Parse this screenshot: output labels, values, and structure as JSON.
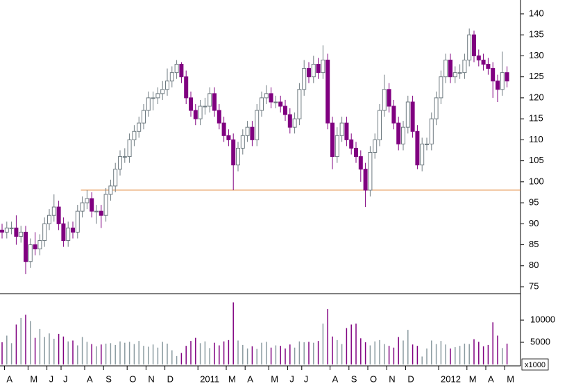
{
  "chart_data": {
    "type": "candlestick",
    "categories": [
      null,
      "A",
      null,
      null,
      null,
      null,
      "M",
      null,
      null,
      null,
      "J",
      null,
      null,
      "J",
      null,
      null,
      null,
      null,
      "A",
      null,
      null,
      null,
      "S",
      null,
      null,
      null,
      null,
      "O",
      null,
      null,
      null,
      "N",
      null,
      null,
      null,
      "D",
      null,
      null,
      null,
      null,
      null,
      null,
      "2011",
      null,
      null,
      null,
      null,
      null,
      "M",
      null,
      null,
      null,
      "A",
      null,
      null,
      null,
      null,
      "M",
      null,
      null,
      null,
      "J",
      null,
      null,
      "J",
      null,
      null,
      null,
      null,
      null,
      "A",
      null,
      null,
      null,
      "S",
      null,
      null,
      null,
      "O",
      null,
      null,
      null,
      "N",
      null,
      null,
      null,
      "D",
      null,
      null,
      null,
      null,
      null,
      null,
      "2012",
      null,
      null,
      null,
      null,
      null,
      "M",
      null,
      null,
      null,
      "A",
      null,
      null,
      null,
      "M"
    ],
    "open": [
      88.5,
      88,
      89,
      89,
      87,
      88,
      81,
      85,
      84,
      86,
      90,
      92,
      94,
      90,
      86,
      89,
      88,
      93,
      95,
      96,
      93,
      93,
      92,
      97,
      99,
      103,
      106,
      106,
      110,
      112,
      114,
      117,
      120,
      120,
      121,
      122,
      124,
      126,
      128,
      125,
      120,
      117,
      115,
      118,
      118,
      121,
      117,
      114,
      111,
      110,
      104,
      108,
      111,
      113,
      110,
      117,
      120,
      121,
      119,
      119,
      118,
      116,
      113,
      115,
      122,
      127,
      125,
      128,
      126,
      129,
      114,
      106,
      111,
      114,
      110,
      108,
      106,
      103,
      98,
      107,
      110,
      117,
      122,
      118,
      114,
      109,
      113,
      119,
      112,
      104,
      109,
      109,
      115,
      120,
      125,
      129,
      125,
      126,
      126,
      129,
      135,
      130,
      129,
      128,
      127,
      124,
      122,
      126
    ],
    "high": [
      90,
      90.5,
      90.5,
      92,
      89.5,
      89.5,
      86.5,
      88,
      87.5,
      91.5,
      93.5,
      97,
      95.5,
      91.5,
      90.5,
      90.5,
      94.5,
      96.5,
      98,
      97.5,
      94.5,
      94.5,
      98.5,
      100.5,
      104.5,
      107.5,
      108,
      111.5,
      113.5,
      115.5,
      118.5,
      121.5,
      121.5,
      122.5,
      124,
      127,
      127.5,
      129,
      128.5,
      126.5,
      121.5,
      118.5,
      119.5,
      120,
      122.5,
      122.5,
      118.5,
      115.5,
      112.5,
      111.5,
      109.5,
      112.5,
      114.5,
      114.5,
      118.5,
      121.5,
      123,
      122.5,
      120.5,
      120.5,
      119.5,
      117.5,
      116.5,
      123.5,
      129,
      128.5,
      130,
      129.5,
      132.5,
      130.5,
      115.5,
      113,
      115.5,
      115.5,
      111.5,
      109.5,
      107.5,
      104.5,
      108.5,
      111.5,
      118.5,
      125.5,
      123.5,
      119.5,
      115.5,
      114.5,
      120.5,
      120.5,
      113.5,
      110.5,
      110.5,
      116.5,
      121.5,
      126.5,
      130.5,
      130.5,
      127.5,
      128,
      130.5,
      136.5,
      136,
      131.5,
      130.5,
      129.5,
      128.5,
      125.5,
      131,
      127.5
    ],
    "low": [
      86.5,
      86.5,
      87.5,
      85,
      85.5,
      78,
      79.5,
      82.5,
      82.5,
      84.5,
      88.5,
      90.5,
      88.5,
      84.5,
      84.5,
      86.5,
      86.5,
      91.5,
      93.5,
      91.5,
      90,
      89,
      90.5,
      95.5,
      97.5,
      101.5,
      104.5,
      104.5,
      108.5,
      110.5,
      112.5,
      115.5,
      117,
      118.5,
      119.5,
      120.5,
      122.5,
      124.5,
      123.5,
      118.5,
      115.5,
      113.5,
      113.5,
      116,
      116.5,
      115.5,
      112.5,
      109.5,
      108.5,
      98,
      102.5,
      106.5,
      109.5,
      108.5,
      108.5,
      115.5,
      118.5,
      117.5,
      117.5,
      116.5,
      114.5,
      111.5,
      111.5,
      113.5,
      120.5,
      123.5,
      123.5,
      124.5,
      124.5,
      112.5,
      103,
      104.5,
      109.5,
      108.5,
      106.5,
      104.5,
      100,
      94,
      96.5,
      105.5,
      108.5,
      115.5,
      116.5,
      112.5,
      107.5,
      107.5,
      111.5,
      110.5,
      103,
      102.5,
      107.5,
      107.5,
      113.5,
      118.5,
      123.5,
      123.5,
      123.5,
      124.5,
      124.5,
      127.5,
      128.5,
      127.5,
      126.5,
      125.5,
      120,
      119,
      120.5,
      122.5
    ],
    "close": [
      88,
      89,
      89,
      87,
      88,
      81,
      85,
      84,
      86,
      90,
      92,
      94,
      90,
      86,
      89,
      88,
      93,
      95,
      96,
      93,
      93,
      92,
      97,
      99,
      103,
      106,
      106,
      110,
      112,
      114,
      117,
      120,
      120,
      121,
      122,
      124,
      126,
      128,
      125,
      120,
      117,
      115,
      118,
      118,
      121,
      117,
      114,
      111,
      110,
      104,
      108,
      111,
      113,
      110,
      117,
      120,
      121,
      119,
      119,
      118,
      116,
      113,
      115,
      122,
      127,
      125,
      128,
      126,
      129,
      114,
      106,
      111,
      114,
      110,
      108,
      106,
      103,
      98,
      107,
      110,
      117,
      122,
      118,
      114,
      109,
      113,
      119,
      112,
      104,
      109,
      109,
      115,
      120,
      125,
      129,
      125,
      126,
      126,
      129,
      135,
      130,
      129,
      128,
      127,
      124,
      122,
      126,
      124
    ],
    "volume": [
      5000,
      6500,
      4800,
      9000,
      10500,
      11200,
      9800,
      6000,
      8000,
      6200,
      7000,
      5800,
      6900,
      6300,
      5200,
      5400,
      4300,
      6200,
      5100,
      4600,
      4100,
      4500,
      4700,
      4800,
      4400,
      5200,
      4900,
      5100,
      4600,
      5300,
      4200,
      4000,
      4500,
      3800,
      5100,
      4700,
      3200,
      1900,
      2600,
      4200,
      5300,
      6000,
      4800,
      5200,
      3700,
      4900,
      4300,
      5200,
      5500,
      14000,
      5400,
      4400,
      3600,
      4100,
      3500,
      4900,
      5100,
      3800,
      4300,
      4200,
      3600,
      4500,
      3800,
      5200,
      5000,
      5100,
      4900,
      5300,
      9200,
      12500,
      6300,
      5500,
      4600,
      8200,
      9000,
      9200,
      5900,
      5000,
      4300,
      5200,
      5500,
      4600,
      4200,
      3800,
      6200,
      5400,
      7800,
      4500,
      4200,
      1800,
      3600,
      5400,
      4600,
      5300,
      4500,
      3600,
      3900,
      4200,
      4700,
      4600,
      5700,
      5100,
      4100,
      4400,
      9500,
      6500,
      3700,
      4700
    ],
    "up_color": "#ffffff",
    "up_edge_color": "#6e7a80",
    "down_color": "#800080",
    "level_color": "#e08030",
    "level": 98,
    "ylim": [
      73.35,
      143.3
    ],
    "yticks": [
      75,
      80,
      85,
      90,
      95,
      100,
      105,
      110,
      115,
      120,
      125,
      130,
      135,
      140
    ],
    "volume_ylim": [
      0,
      15800
    ],
    "volume_yticks": [
      5000,
      10000
    ],
    "volume_unit_label": "x1000"
  }
}
